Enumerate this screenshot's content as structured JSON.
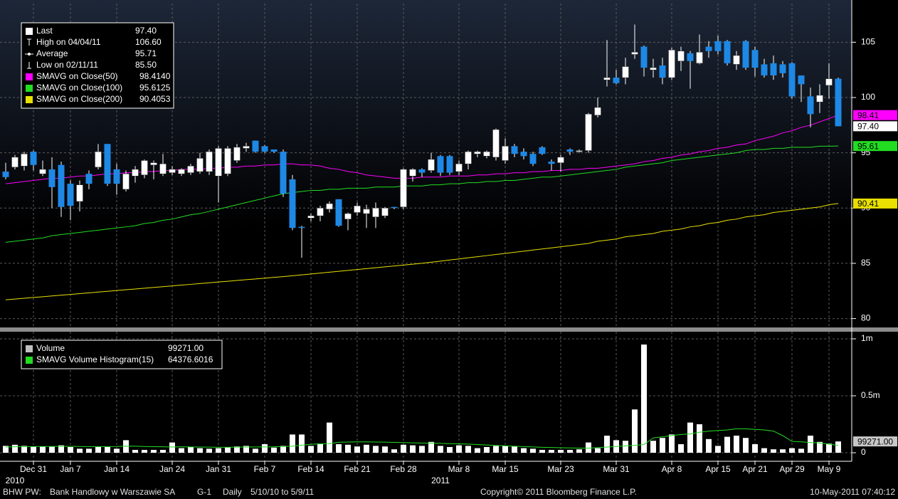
{
  "chart_data": [
    {
      "type": "candlestick",
      "categories": [
        null,
        null,
        null,
        "Dec 31",
        null,
        null,
        null,
        "Jan 7",
        null,
        null,
        null,
        null,
        "Jan 14",
        null,
        null,
        null,
        null,
        null,
        "Jan 24",
        null,
        null,
        null,
        null,
        "Jan 31",
        null,
        null,
        null,
        null,
        "Feb 7",
        null,
        null,
        null,
        null,
        "Feb 14",
        null,
        null,
        null,
        null,
        "Feb 21",
        null,
        null,
        null,
        null,
        "Feb 28",
        null,
        null,
        null,
        null,
        null,
        "Mar 8",
        null,
        null,
        null,
        null,
        "Mar 15",
        null,
        null,
        null,
        null,
        null,
        "Mar 23",
        null,
        null,
        null,
        null,
        null,
        "Mar 31",
        null,
        null,
        null,
        null,
        null,
        "Apr 8",
        null,
        null,
        null,
        null,
        "Apr 15",
        null,
        null,
        null,
        "Apr 21",
        null,
        null,
        null,
        "Apr 29",
        null,
        null,
        null,
        "May 9",
        null
      ],
      "year_labels": [
        null,
        "2010",
        null,
        null,
        null,
        null,
        null,
        null,
        null,
        null,
        null,
        null,
        null,
        null,
        null,
        null,
        null,
        null,
        null,
        null,
        null,
        null,
        null,
        null,
        null,
        null,
        null,
        null,
        null,
        null,
        null,
        null,
        null,
        null,
        null,
        null,
        null,
        null,
        null,
        null,
        null,
        null,
        null,
        null,
        null,
        null,
        null,
        "2011",
        null,
        null,
        null,
        null,
        null,
        null,
        null,
        null,
        null,
        null,
        null,
        null,
        null,
        null,
        null,
        null,
        null,
        null,
        null,
        null,
        null,
        null,
        null,
        null,
        null,
        null,
        null,
        null,
        null,
        null,
        null,
        null,
        null,
        null,
        null,
        null,
        null,
        null,
        null,
        null,
        null,
        null,
        null
      ],
      "open": [
        93.3,
        93.7,
        93.8,
        95.1,
        93.1,
        93.5,
        93.9,
        92.2,
        90.6,
        93.1,
        93.7,
        95.8,
        93.5,
        91.7,
        92.9,
        93.0,
        93.9,
        93.1,
        93.2,
        93.1,
        93.2,
        93.3,
        93.3,
        92.9,
        93.1,
        94.3,
        95.4,
        96.1,
        95.6,
        95.3,
        95.1,
        92.6,
        88.3,
        89.1,
        89.3,
        89.9,
        90.8,
        89.0,
        89.6,
        89.5,
        89.2,
        89.3,
        90.1,
        90.1,
        92.9,
        93.5,
        93.4,
        94.7,
        94.7,
        93.3,
        94.0,
        94.9,
        94.7,
        94.6,
        94.3,
        95.6,
        95.1,
        94.9,
        95.5,
        94.2,
        94.1,
        95.3,
        95.1,
        95.2,
        98.4,
        101.6,
        101.8,
        101.8,
        103.9,
        104.6,
        102.5,
        102.9,
        101.8,
        103.3,
        104.0,
        103.1,
        104.6,
        105.1,
        105.1,
        103.0,
        105.1,
        104.3,
        103.0,
        103.1,
        103.0,
        103.1,
        102.0,
        100.1,
        99.6,
        101.1,
        101.7
      ],
      "high": [
        94.1,
        94.8,
        95.1,
        95.2,
        94.3,
        94.6,
        94.2,
        92.5,
        92.5,
        93.4,
        95.8,
        95.8,
        94.0,
        93.4,
        93.8,
        94.4,
        94.3,
        94.9,
        93.8,
        93.6,
        94.0,
        95.0,
        95.3,
        95.6,
        95.6,
        95.8,
        95.9,
        96.1,
        95.7,
        95.3,
        95.3,
        93.0,
        88.4,
        89.5,
        90.2,
        90.6,
        90.8,
        89.6,
        90.5,
        90.3,
        90.5,
        90.1,
        90.1,
        93.6,
        93.6,
        93.6,
        95.0,
        94.8,
        94.8,
        94.3,
        95.2,
        95.2,
        95.2,
        97.2,
        96.3,
        95.8,
        95.4,
        95.1,
        95.6,
        94.4,
        94.8,
        95.4,
        95.3,
        98.6,
        100.0,
        105.2,
        102.5,
        103.6,
        106.6,
        104.7,
        103.5,
        103.6,
        104.5,
        104.6,
        104.2,
        105.7,
        105.1,
        105.6,
        105.2,
        104.2,
        105.2,
        104.6,
        103.5,
        103.8,
        103.3,
        103.2,
        102.0,
        100.9,
        101.2,
        103.1,
        101.8
      ],
      "low": [
        92.6,
        93.5,
        93.4,
        93.4,
        92.9,
        90.0,
        89.2,
        88.9,
        89.7,
        91.7,
        93.5,
        92.0,
        91.2,
        91.5,
        92.3,
        92.7,
        92.6,
        92.9,
        93.0,
        92.9,
        93.0,
        93.1,
        93.0,
        90.5,
        92.9,
        94.1,
        95.1,
        95.0,
        95.0,
        95.0,
        91.0,
        88.0,
        85.5,
        88.8,
        88.8,
        89.6,
        88.3,
        88.0,
        89.3,
        88.2,
        88.2,
        89.1,
        89.9,
        89.9,
        92.4,
        92.8,
        93.2,
        92.9,
        93.0,
        93.0,
        93.5,
        94.6,
        94.5,
        94.3,
        94.0,
        94.6,
        94.4,
        93.8,
        94.8,
        93.4,
        93.3,
        94.8,
        95.0,
        95.0,
        98.2,
        101.0,
        101.2,
        101.2,
        103.5,
        101.9,
        101.8,
        101.2,
        101.6,
        102.4,
        100.8,
        103.0,
        103.6,
        103.9,
        102.9,
        102.5,
        102.5,
        101.9,
        101.8,
        101.6,
        101.8,
        99.9,
        99.6,
        97.3,
        98.6,
        99.9,
        97.4
      ],
      "close": [
        92.8,
        94.6,
        94.9,
        93.9,
        93.5,
        91.9,
        90.1,
        90.2,
        92.1,
        92.2,
        95.1,
        92.2,
        92.2,
        93.1,
        93.5,
        94.3,
        94.1,
        94.0,
        93.5,
        93.5,
        93.8,
        94.5,
        95.1,
        95.4,
        95.4,
        95.5,
        95.6,
        95.1,
        95.1,
        95.1,
        91.3,
        88.2,
        88.2,
        89.3,
        90.0,
        90.4,
        88.4,
        89.5,
        90.2,
        89.9,
        90.0,
        90.0,
        90.0,
        93.5,
        93.5,
        93.2,
        94.4,
        93.2,
        93.2,
        94.0,
        95.1,
        95.1,
        95.1,
        97.1,
        95.6,
        94.9,
        94.7,
        94.0,
        94.9,
        94.0,
        94.6,
        95.1,
        95.2,
        98.5,
        99.1,
        101.8,
        101.3,
        102.8,
        104.1,
        102.7,
        102.7,
        101.8,
        104.3,
        104.2,
        103.3,
        104.1,
        104.2,
        104.2,
        103.1,
        103.8,
        102.7,
        102.7,
        102.0,
        102.0,
        102.2,
        100.1,
        101.2,
        98.5,
        100.2,
        101.7,
        97.4
      ],
      "up_color": "#ffffff",
      "down_color": "#1e88e5",
      "stats": [
        {
          "name": "Last",
          "value": 97.4,
          "value_label": "97.40"
        },
        {
          "name": "High on 04/04/11",
          "value": 106.6,
          "value_label": "106.60"
        },
        {
          "name": "Average",
          "value": 95.71
        },
        {
          "name": "Low on 02/11/11",
          "value": 85.5,
          "value_label": "85.50"
        }
      ],
      "series": [
        {
          "name": "SMAVG on Close(50)",
          "color": "#ff00ff",
          "legend_value": 98.414,
          "legend_label": "98.4140",
          "tag": 98.41,
          "values": [
            92.2,
            92.3,
            92.4,
            92.5,
            92.6,
            92.7,
            92.7,
            92.8,
            92.9,
            92.9,
            93.0,
            93.1,
            93.1,
            93.2,
            93.2,
            93.3,
            93.3,
            93.4,
            93.4,
            93.5,
            93.5,
            93.5,
            93.6,
            93.6,
            93.7,
            93.7,
            93.8,
            93.8,
            93.9,
            93.9,
            94.0,
            94.0,
            93.9,
            93.9,
            93.8,
            93.6,
            93.5,
            93.3,
            93.2,
            93.0,
            92.9,
            92.8,
            92.7,
            92.7,
            92.7,
            92.8,
            92.8,
            92.8,
            92.9,
            92.9,
            92.9,
            93.0,
            93.0,
            93.1,
            93.1,
            93.2,
            93.2,
            93.3,
            93.3,
            93.4,
            93.4,
            93.5,
            93.5,
            93.6,
            93.6,
            93.7,
            93.8,
            93.9,
            94.0,
            94.2,
            94.3,
            94.5,
            94.6,
            94.8,
            94.9,
            95.1,
            95.2,
            95.4,
            95.5,
            95.7,
            95.8,
            96.1,
            96.3,
            96.5,
            96.8,
            97.0,
            97.3,
            97.5,
            97.8,
            98.1,
            98.41
          ]
        },
        {
          "name": "SMAVG on Close(100)",
          "color": "#22dd22",
          "legend_value": 95.6125,
          "tag": 95.61,
          "values": [
            86.9,
            87.0,
            87.1,
            87.2,
            87.3,
            87.5,
            87.6,
            87.7,
            87.8,
            87.9,
            88.0,
            88.1,
            88.2,
            88.3,
            88.4,
            88.6,
            88.7,
            88.9,
            89.0,
            89.2,
            89.4,
            89.5,
            89.7,
            89.9,
            90.1,
            90.3,
            90.5,
            90.7,
            90.9,
            91.1,
            91.3,
            91.4,
            91.5,
            91.6,
            91.6,
            91.7,
            91.7,
            91.8,
            91.8,
            91.8,
            91.9,
            91.9,
            91.9,
            92.0,
            92.0,
            92.0,
            92.1,
            92.1,
            92.2,
            92.2,
            92.3,
            92.3,
            92.4,
            92.4,
            92.5,
            92.5,
            92.6,
            92.7,
            92.8,
            92.8,
            92.9,
            93.0,
            93.1,
            93.2,
            93.3,
            93.4,
            93.5,
            93.7,
            93.8,
            93.9,
            94.0,
            94.1,
            94.3,
            94.4,
            94.5,
            94.6,
            94.7,
            94.8,
            94.9,
            95.0,
            95.2,
            95.3,
            95.3,
            95.4,
            95.4,
            95.5,
            95.5,
            95.5,
            95.6,
            95.6,
            95.61
          ]
        },
        {
          "name": "SMAVG on Close(200)",
          "color": "#e8e000",
          "legend_value": 90.4053,
          "tag": 90.41,
          "values": [
            81.7,
            81.77,
            81.84,
            81.91,
            81.98,
            82.05,
            82.12,
            82.19,
            82.26,
            82.33,
            82.4,
            82.47,
            82.54,
            82.61,
            82.68,
            82.75,
            82.82,
            82.89,
            82.96,
            83.03,
            83.1,
            83.17,
            83.24,
            83.31,
            83.38,
            83.45,
            83.52,
            83.59,
            83.66,
            83.73,
            83.8,
            83.88,
            83.96,
            84.04,
            84.12,
            84.2,
            84.28,
            84.36,
            84.44,
            84.52,
            84.6,
            84.68,
            84.76,
            84.84,
            84.92,
            85.0,
            85.1,
            85.2,
            85.3,
            85.4,
            85.5,
            85.6,
            85.7,
            85.8,
            85.9,
            86.0,
            86.1,
            86.2,
            86.3,
            86.4,
            86.5,
            86.6,
            86.7,
            86.8,
            87.0,
            87.1,
            87.2,
            87.4,
            87.5,
            87.6,
            87.7,
            87.9,
            88.0,
            88.1,
            88.3,
            88.4,
            88.6,
            88.7,
            88.9,
            89.0,
            89.2,
            89.3,
            89.4,
            89.6,
            89.7,
            89.8,
            89.9,
            90.0,
            90.1,
            90.3,
            90.41
          ]
        }
      ],
      "close_tag": {
        "value": 97.4,
        "label": "97.40"
      },
      "ylim": [
        79.2,
        108.5
      ],
      "yticks": [
        80,
        85,
        90,
        95,
        100,
        105
      ],
      "grid": true
    },
    {
      "type": "bar",
      "color": "#ffffff",
      "values": [
        60000,
        70000,
        60000,
        55000,
        55000,
        55000,
        65000,
        50000,
        35000,
        35000,
        50000,
        50000,
        35000,
        110000,
        25000,
        25000,
        25000,
        25000,
        90000,
        40000,
        50000,
        40000,
        35000,
        40000,
        50000,
        55000,
        60000,
        35000,
        75000,
        45000,
        60000,
        160000,
        160000,
        60000,
        80000,
        265000,
        75000,
        70000,
        55000,
        70000,
        60000,
        55000,
        30000,
        70000,
        65000,
        60000,
        95000,
        60000,
        50000,
        65000,
        60000,
        40000,
        50000,
        60000,
        60000,
        55000,
        40000,
        35000,
        25000,
        25000,
        25000,
        25000,
        30000,
        90000,
        40000,
        150000,
        110000,
        105000,
        380000,
        950000,
        105000,
        130000,
        160000,
        75000,
        265000,
        250000,
        120000,
        60000,
        140000,
        150000,
        130000,
        75000,
        40000,
        30000,
        30000,
        40000,
        35000,
        150000,
        95000,
        80000,
        99271
      ],
      "stats": [
        {
          "name": "Volume",
          "value": 99271,
          "value_label": "99271.00",
          "color": "#c0c0c0"
        }
      ],
      "series": [
        {
          "name": "SMAVG Volume Histogram(15)",
          "color": "#22dd22",
          "legend_value": 64376.6016,
          "values": [
            50000,
            52000,
            53000,
            54000,
            55000,
            55000,
            56000,
            56000,
            55000,
            54000,
            53000,
            54000,
            55000,
            58000,
            57000,
            55000,
            53000,
            52000,
            50000,
            52000,
            51000,
            50000,
            49000,
            48000,
            48000,
            49000,
            50000,
            51000,
            51000,
            52000,
            54000,
            58000,
            66000,
            74000,
            77000,
            80000,
            92000,
            94000,
            95000,
            95000,
            94000,
            93000,
            91000,
            89000,
            87000,
            85000,
            84000,
            82000,
            80000,
            78000,
            76000,
            72000,
            68000,
            64000,
            60000,
            57000,
            54000,
            51000,
            48000,
            46000,
            44000,
            42000,
            41000,
            40000,
            45000,
            50000,
            55000,
            60000,
            65000,
            72000,
            130000,
            140000,
            150000,
            160000,
            165000,
            180000,
            190000,
            195000,
            200000,
            210000,
            210000,
            205000,
            200000,
            190000,
            150000,
            100000,
            95000,
            90000,
            85000,
            75000,
            64376.6016
          ]
        }
      ],
      "tag": {
        "value": 99271,
        "label": "99271.00"
      },
      "ylim": [
        -75000,
        1062500
      ],
      "yticks": [
        0,
        {
          "value": 500000,
          "label": "0.5m"
        },
        {
          "value": 1000000,
          "label": "1m"
        }
      ],
      "grid": true
    }
  ],
  "footer": {
    "ticker": "BHW PW:",
    "company": "Bank Handlowy w Warszawie SA",
    "page": "G-1",
    "period": "Daily",
    "range": "5/10/10 to 5/9/11",
    "copyright": "Copyright© 2011 Bloomberg Finance L.P.",
    "timestamp": "10-May-2011 07:40:12"
  }
}
